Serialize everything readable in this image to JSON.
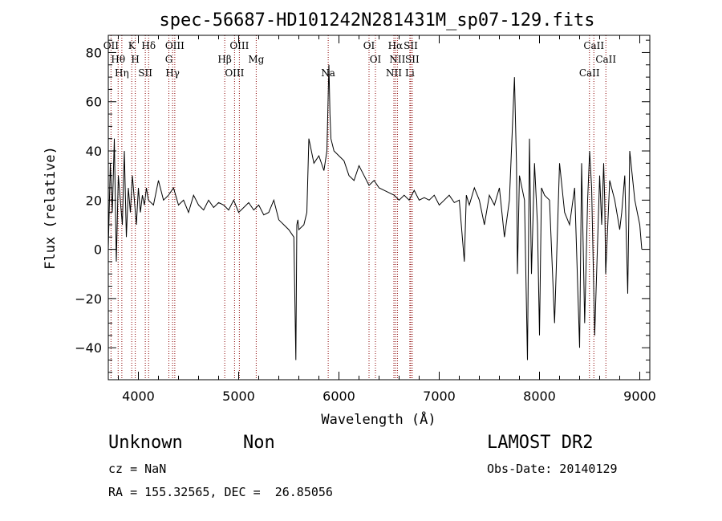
{
  "chart_data": {
    "type": "line",
    "title": "spec-56687-HD101242N281431M_sp07-129.fits",
    "xlabel": "Wavelength (Å)",
    "ylabel": "Flux (relative)",
    "xlim": [
      3700,
      9100
    ],
    "ylim": [
      -53,
      87
    ],
    "x_ticks": [
      4000,
      5000,
      6000,
      7000,
      8000,
      9000
    ],
    "y_ticks": [
      -40,
      -20,
      0,
      20,
      40,
      60,
      80
    ],
    "grid": false,
    "line_color": "#000000",
    "marker_color": "#8b0000",
    "series": [
      {
        "x": [
          3700,
          3720,
          3740,
          3760,
          3780,
          3800,
          3820,
          3840,
          3860,
          3880,
          3900,
          3920,
          3940,
          3960,
          3980,
          4000,
          4020,
          4040,
          4060,
          4080,
          4100,
          4150,
          4200,
          4250,
          4300,
          4350,
          4400,
          4450,
          4500,
          4550,
          4600,
          4650,
          4700,
          4750,
          4800,
          4850,
          4900,
          4950,
          5000,
          5050,
          5100,
          5150,
          5200,
          5250,
          5300,
          5350,
          5400,
          5450,
          5500,
          5550,
          5570,
          5580,
          5590,
          5600,
          5650,
          5680,
          5700,
          5750,
          5800,
          5850,
          5880,
          5900,
          5910,
          5920,
          5950,
          6000,
          6050,
          6100,
          6150,
          6200,
          6250,
          6300,
          6350,
          6400,
          6450,
          6500,
          6550,
          6600,
          6650,
          6700,
          6750,
          6800,
          6850,
          6900,
          6950,
          7000,
          7050,
          7100,
          7150,
          7200,
          7250,
          7270,
          7300,
          7350,
          7400,
          7450,
          7500,
          7550,
          7600,
          7650,
          7700,
          7750,
          7770,
          7780,
          7800,
          7850,
          7880,
          7900,
          7920,
          7950,
          7980,
          8000,
          8020,
          8050,
          8100,
          8150,
          8200,
          8250,
          8300,
          8350,
          8400,
          8420,
          8450,
          8480,
          8500,
          8520,
          8550,
          8600,
          8620,
          8640,
          8650,
          8660,
          8700,
          8750,
          8800,
          8820,
          8850,
          8880,
          8900,
          8950,
          9000,
          9020
        ],
        "y": [
          0,
          35,
          15,
          45,
          -5,
          30,
          20,
          10,
          40,
          5,
          25,
          15,
          30,
          20,
          10,
          25,
          15,
          22,
          18,
          25,
          20,
          18,
          28,
          20,
          22,
          25,
          18,
          20,
          15,
          22,
          18,
          16,
          20,
          17,
          19,
          18,
          16,
          20,
          15,
          17,
          19,
          16,
          18,
          14,
          15,
          20,
          12,
          10,
          8,
          5,
          -45,
          10,
          12,
          8,
          10,
          15,
          45,
          35,
          38,
          32,
          40,
          75,
          55,
          45,
          40,
          38,
          36,
          30,
          28,
          34,
          30,
          26,
          28,
          25,
          24,
          23,
          22,
          20,
          22,
          20,
          24,
          20,
          21,
          20,
          22,
          18,
          20,
          22,
          19,
          20,
          -5,
          22,
          18,
          25,
          20,
          10,
          22,
          18,
          25,
          5,
          20,
          70,
          35,
          -10,
          30,
          20,
          -45,
          45,
          -10,
          35,
          10,
          -35,
          25,
          22,
          20,
          -30,
          35,
          15,
          10,
          25,
          -40,
          35,
          -30,
          20,
          40,
          25,
          -35,
          30,
          10,
          35,
          20,
          -10,
          28,
          20,
          8,
          15,
          30,
          -18,
          40,
          20,
          10,
          0
        ]
      }
    ],
    "line_markers": [
      {
        "w": 3727,
        "labels": [
          "OII"
        ]
      },
      {
        "w": 3798,
        "labels": [
          "Hθ"
        ]
      },
      {
        "w": 3835,
        "labels": [
          "Hη"
        ]
      },
      {
        "w": 3934,
        "labels": [
          "K"
        ]
      },
      {
        "w": 3969,
        "labels": [
          "H"
        ]
      },
      {
        "w": 4069,
        "labels": [
          "SII"
        ]
      },
      {
        "w": 4102,
        "labels": [
          "Hδ"
        ]
      },
      {
        "w": 4304,
        "labels": [
          "G"
        ]
      },
      {
        "w": 4341,
        "labels": [
          "Hγ"
        ]
      },
      {
        "w": 4363,
        "labels": [
          "OIII"
        ]
      },
      {
        "w": 4861,
        "labels": [
          "Hβ"
        ]
      },
      {
        "w": 4959,
        "labels": [
          "OIII"
        ]
      },
      {
        "w": 5007,
        "labels": [
          "OIII"
        ]
      },
      {
        "w": 5175,
        "labels": [
          "Mg"
        ]
      },
      {
        "w": 5893,
        "labels": [
          "Na"
        ]
      },
      {
        "w": 6300,
        "labels": [
          "OI"
        ]
      },
      {
        "w": 6364,
        "labels": [
          "OI"
        ]
      },
      {
        "w": 6548,
        "labels": [
          "NII"
        ]
      },
      {
        "w": 6563,
        "labels": [
          "Hα"
        ]
      },
      {
        "w": 6583,
        "labels": [
          "NII"
        ]
      },
      {
        "w": 6707,
        "labels": [
          "Li"
        ]
      },
      {
        "w": 6716,
        "labels": [
          "SII"
        ]
      },
      {
        "w": 6731,
        "labels": [
          "SII"
        ]
      },
      {
        "w": 8498,
        "labels": [
          "CaII"
        ]
      },
      {
        "w": 8542,
        "labels": [
          "CaII"
        ]
      },
      {
        "w": 8662,
        "labels": [
          "CaII"
        ]
      }
    ]
  },
  "info": {
    "class_label": "Unknown",
    "subclass_label": "Non",
    "cz_text": "cz = NaN",
    "radec_text": "RA = 155.32565, DEC =  26.85056",
    "survey_label": "LAMOST DR2",
    "obs_date_text": "Obs-Date: 20140129"
  }
}
